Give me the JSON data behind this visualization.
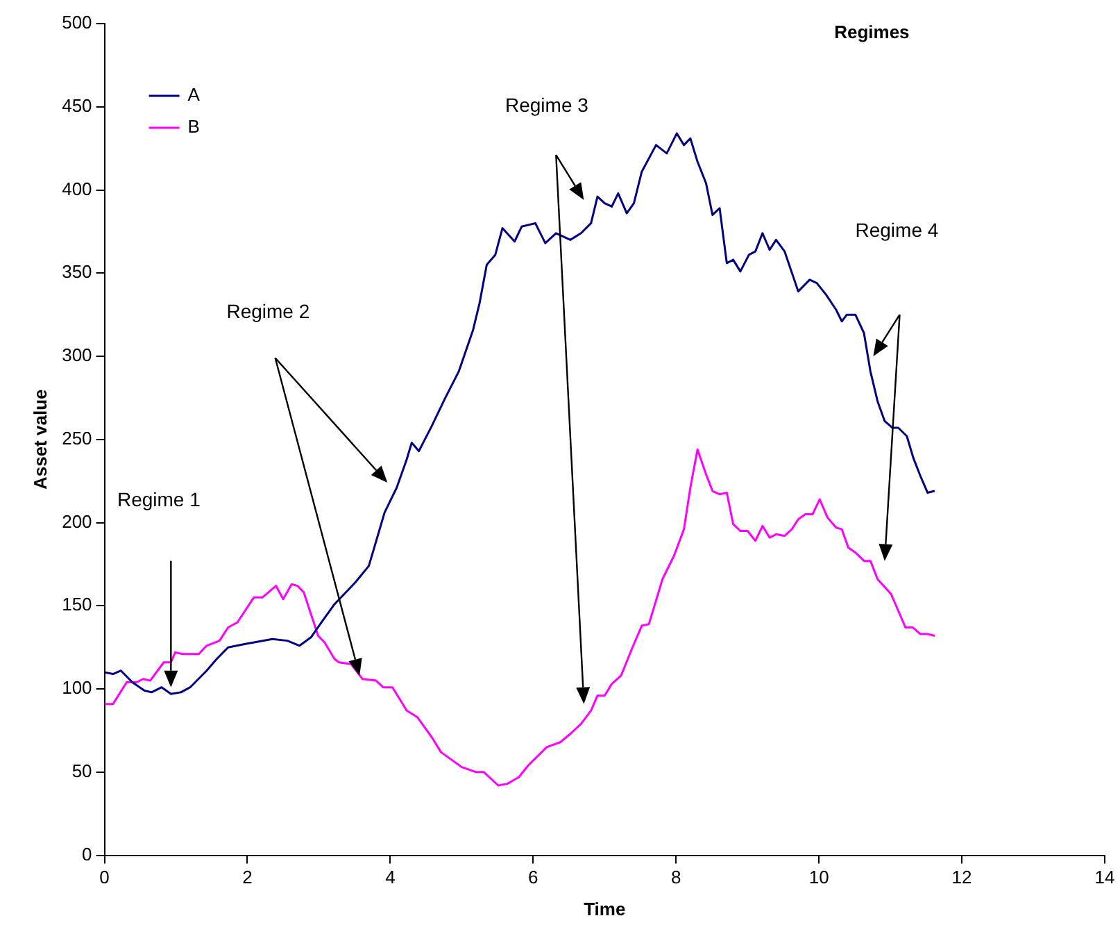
{
  "chart_data": {
    "type": "line",
    "title": "Regimes",
    "xlabel": "Time",
    "ylabel": "Asset value",
    "xlim": [
      0,
      14
    ],
    "xticks": [
      0,
      2,
      4,
      6,
      8,
      10,
      12,
      14
    ],
    "ylim": [
      0,
      500
    ],
    "yticks": [
      0,
      50,
      100,
      150,
      200,
      250,
      300,
      350,
      400,
      450,
      500
    ],
    "grid": false,
    "legend": "top left",
    "marker": "none",
    "line_style": "solid",
    "annotations": [
      "Regime 1",
      "Regime 2",
      "Regime 3",
      "Regime 4"
    ],
    "series": [
      {
        "name": "A",
        "color": "#000080",
        "x": [
          0,
          0.12,
          0.23,
          0.39,
          0.56,
          0.66,
          0.8,
          0.93,
          1.07,
          1.2,
          1.43,
          1.57,
          1.73,
          1.96,
          2.35,
          2.56,
          2.73,
          2.89,
          3.02,
          3.22,
          3.51,
          3.7,
          3.92,
          4.09,
          4.23,
          4.3,
          4.4,
          4.58,
          4.77,
          4.96,
          5.16,
          5.25,
          5.35,
          5.47,
          5.57,
          5.74,
          5.84,
          6.03,
          6.17,
          6.32,
          6.52,
          6.67,
          6.81,
          6.9,
          7.0,
          7.1,
          7.19,
          7.31,
          7.41,
          7.52,
          7.72,
          7.87,
          8.01,
          8.11,
          8.2,
          8.3,
          8.42,
          8.51,
          8.61,
          8.71,
          8.8,
          8.9,
          9.02,
          9.11,
          9.21,
          9.31,
          9.4,
          9.52,
          9.71,
          9.87,
          9.97,
          10.1,
          10.24,
          10.32,
          10.39,
          10.51,
          10.63,
          10.72,
          10.82,
          10.92,
          11.03,
          11.11,
          11.23,
          11.32,
          11.42,
          11.52,
          11.62
        ],
        "values": [
          110,
          109,
          111,
          104,
          99,
          98,
          101,
          97,
          98,
          101,
          111,
          118,
          125,
          127,
          130,
          129,
          126,
          131,
          139,
          151,
          164,
          174,
          206,
          221,
          238,
          248,
          243,
          258,
          275,
          291,
          316,
          332,
          355,
          361,
          377,
          369,
          378,
          380,
          368,
          374,
          370,
          374,
          380,
          396,
          392,
          390,
          398,
          386,
          392,
          411,
          427,
          422,
          434,
          427,
          431,
          417,
          404,
          385,
          389,
          356,
          358,
          351,
          361,
          363,
          374,
          364,
          370,
          363,
          339,
          346,
          344,
          337,
          328,
          321,
          325,
          325,
          314,
          291,
          273,
          261,
          257,
          257,
          252,
          239,
          228,
          218,
          219
        ]
      },
      {
        "name": "B",
        "color": "#ff00ff",
        "x": [
          0,
          0.12,
          0.31,
          0.45,
          0.54,
          0.64,
          0.83,
          0.93,
          0.99,
          1.09,
          1.32,
          1.43,
          1.61,
          1.73,
          1.86,
          2.09,
          2.21,
          2.4,
          2.5,
          2.62,
          2.7,
          2.79,
          2.99,
          3.08,
          3.22,
          3.28,
          3.45,
          3.61,
          3.8,
          3.9,
          4.03,
          4.23,
          4.38,
          4.58,
          4.71,
          5.0,
          5.2,
          5.31,
          5.51,
          5.64,
          5.8,
          5.93,
          6.19,
          6.38,
          6.52,
          6.67,
          6.81,
          6.9,
          7.0,
          7.1,
          7.23,
          7.39,
          7.52,
          7.62,
          7.81,
          7.97,
          8.11,
          8.2,
          8.3,
          8.42,
          8.51,
          8.61,
          8.71,
          8.8,
          8.9,
          9.0,
          9.11,
          9.21,
          9.31,
          9.4,
          9.52,
          9.62,
          9.71,
          9.81,
          9.91,
          10.01,
          10.12,
          10.24,
          10.32,
          10.41,
          10.51,
          10.63,
          10.72,
          10.82,
          11.01,
          11.11,
          11.21,
          11.31,
          11.42,
          11.52,
          11.62
        ],
        "values": [
          91,
          91,
          104,
          104,
          106,
          105,
          116,
          116,
          122,
          121,
          121,
          126,
          129,
          137,
          140,
          155,
          155,
          162,
          154,
          163,
          162,
          158,
          132,
          128,
          118,
          116,
          115,
          106,
          105,
          101,
          101,
          87,
          83,
          71,
          62,
          53,
          50,
          50,
          42,
          43,
          47,
          54,
          65,
          68,
          73,
          79,
          87,
          96,
          96,
          103,
          108,
          125,
          138,
          139,
          166,
          180,
          196,
          221,
          244,
          229,
          219,
          217,
          218,
          199,
          195,
          195,
          189,
          198,
          191,
          193,
          192,
          196,
          202,
          205,
          205,
          214,
          203,
          197,
          196,
          185,
          182,
          177,
          177,
          166,
          157,
          147,
          137,
          137,
          133,
          133,
          132
        ]
      }
    ]
  }
}
